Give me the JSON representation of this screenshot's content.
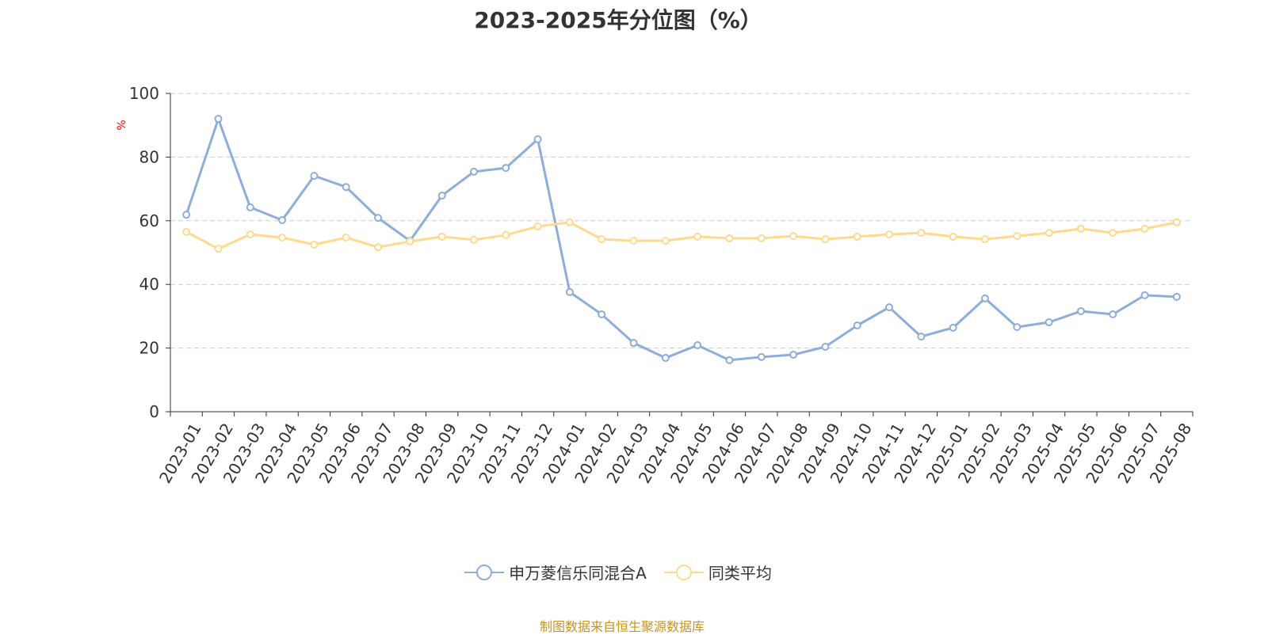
{
  "chart_data": {
    "type": "line",
    "title": "2023-2025年分位图（%）",
    "xlabel": "",
    "ylabel": "%",
    "ylim": [
      0,
      100
    ],
    "yticks": [
      0,
      20,
      40,
      60,
      80,
      100
    ],
    "grid": true,
    "legend_position": "bottom",
    "categories": [
      "2023-01",
      "2023-02",
      "2023-03",
      "2023-04",
      "2023-05",
      "2023-06",
      "2023-07",
      "2023-08",
      "2023-09",
      "2023-10",
      "2023-11",
      "2023-12",
      "2024-01",
      "2024-02",
      "2024-03",
      "2024-04",
      "2024-05",
      "2024-06",
      "2024-07",
      "2024-08",
      "2024-09",
      "2024-10",
      "2024-11",
      "2024-12",
      "2025-01",
      "2025-02",
      "2025-03",
      "2025-04",
      "2025-05",
      "2025-06",
      "2025-07",
      "2025-08"
    ],
    "series": [
      {
        "name": "申万菱信乐同混合A",
        "color": "#8eaddb",
        "values": [
          61.9,
          92.0,
          64.2,
          60.2,
          74.1,
          70.6,
          60.9,
          53.7,
          67.9,
          75.4,
          76.6,
          85.6,
          37.6,
          30.6,
          21.6,
          16.9,
          20.9,
          16.2,
          17.2,
          17.9,
          20.4,
          27.1,
          32.8,
          23.6,
          26.4,
          35.6,
          26.6,
          28.1,
          31.6,
          30.6,
          36.6,
          36.1
        ]
      },
      {
        "name": "同类平均",
        "color": "#ffd98e",
        "values": [
          56.5,
          51.2,
          55.7,
          54.7,
          52.5,
          54.7,
          51.7,
          53.5,
          55.0,
          54.0,
          55.5,
          58.2,
          59.5,
          54.2,
          53.7,
          53.7,
          55.0,
          54.5,
          54.5,
          55.2,
          54.2,
          55.0,
          55.7,
          56.2,
          55.0,
          54.2,
          55.2,
          56.2,
          57.5,
          56.2,
          57.5,
          59.5
        ]
      }
    ]
  },
  "footer": {
    "source": "制图数据来自恒生聚源数据库"
  }
}
